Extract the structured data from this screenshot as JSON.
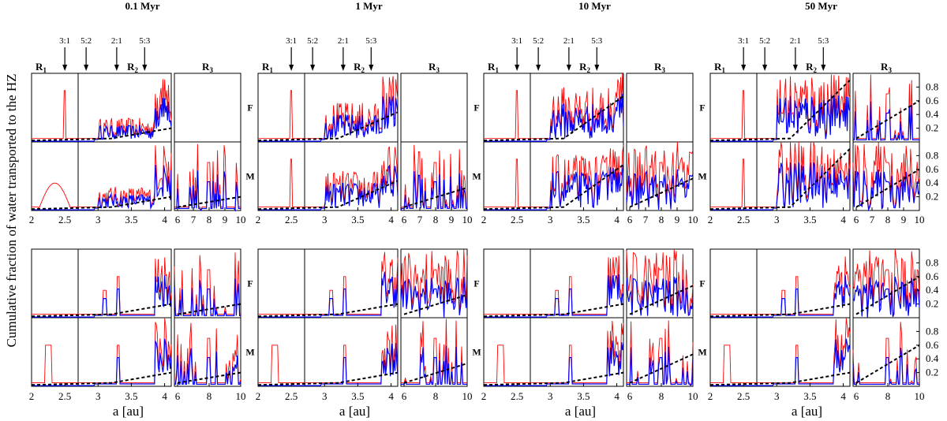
{
  "chart_data": {
    "type": "line",
    "ylabel": "Cumulative fraction of water transported to the HZ",
    "xlabel": "a [au]",
    "columns": [
      "0.1 Myr",
      "1 Myr",
      "10 Myr",
      "50 Myr"
    ],
    "region_labels": {
      "r1": "R",
      "r2": "R",
      "r3": "R",
      "sub1": "1",
      "sub2": "2",
      "sub3": "3"
    },
    "resonances": [
      {
        "label": "3:1",
        "a": 2.5
      },
      {
        "label": "5:2",
        "a": 2.82
      },
      {
        "label": "2:1",
        "a": 3.28
      },
      {
        "label": "5:3",
        "a": 3.7
      }
    ],
    "left_panel": {
      "xlim": [
        2.0,
        4.1
      ],
      "ticks": [
        "2",
        "2.5",
        "3",
        "3.5",
        "4"
      ],
      "tick_values": [
        2,
        2.5,
        3,
        3.5,
        4
      ],
      "divider_a": 2.7
    },
    "right_panel": {
      "xlim": [
        5.8,
        10.0
      ],
      "ticks_top": [
        "6",
        "7",
        "8",
        "9",
        "10"
      ],
      "ticks_top_values": [
        6,
        7,
        8,
        9,
        10
      ],
      "ticks_bottom": [
        "6",
        "8",
        "10"
      ],
      "ticks_bottom_values": [
        6,
        8,
        10
      ]
    },
    "ylim": [
      0,
      1
    ],
    "y_ticks": [
      "0.2",
      "0.4",
      "0.6",
      "0.8"
    ],
    "y_tick_values": [
      0.2,
      0.4,
      0.6,
      0.8
    ],
    "row_labels": [
      "F",
      "M",
      "F",
      "M"
    ],
    "series": [
      {
        "name": "cumulative (red)",
        "color": "#ff0000"
      },
      {
        "name": "smoothed (blue)",
        "color": "#0000ff"
      },
      {
        "name": "linear fit (dashed)",
        "color": "#000000"
      }
    ]
  }
}
